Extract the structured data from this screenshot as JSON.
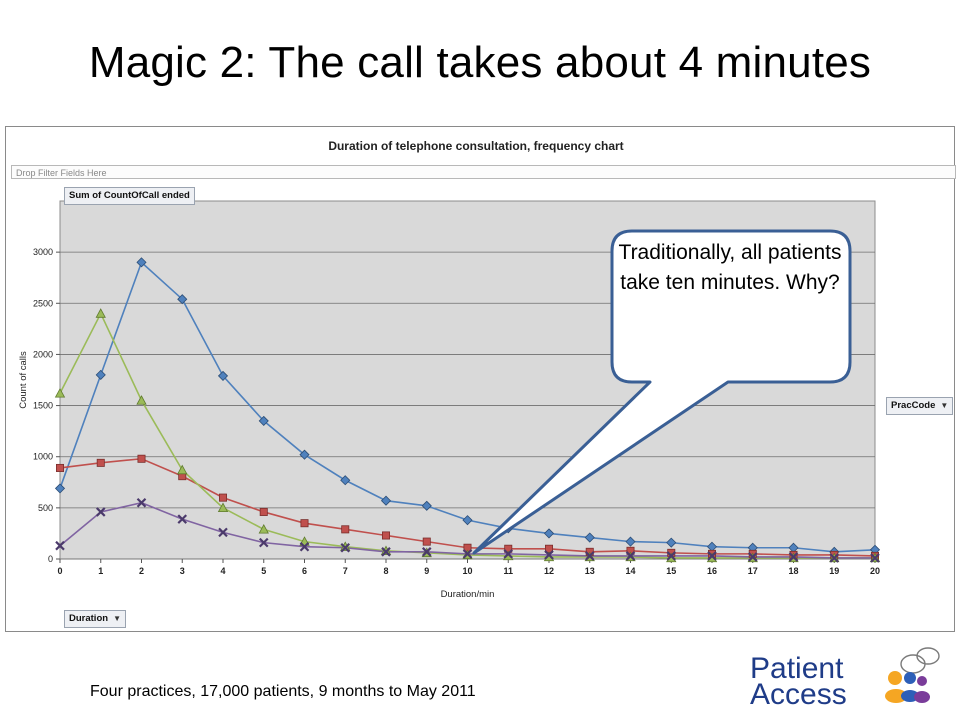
{
  "slide": {
    "title": "Magic 2: The call takes about 4 minutes",
    "footer": "Four practices, 17,000 patients, 9 months to May 2011"
  },
  "pivot": {
    "filter_placeholder": "Drop Filter Fields Here",
    "value_field": "Sum of CountOfCall ended",
    "row_field": "Duration",
    "legend_field": "PracCode"
  },
  "callout": {
    "text": "Traditionally, all patients take ten minutes. Why?"
  },
  "logo": {
    "line1": "Patient",
    "line2": "Access",
    "colors": {
      "word": "#1f3c88",
      "orange": "#f5a623",
      "blue": "#2d5fb8",
      "purple": "#7a3c9a"
    }
  },
  "chart_data": {
    "type": "line",
    "title": "Duration of telephone consultation, frequency chart",
    "xlabel": "Duration/min",
    "ylabel": "Count of calls",
    "x": [
      0,
      1,
      2,
      3,
      4,
      5,
      6,
      7,
      8,
      9,
      10,
      11,
      12,
      13,
      14,
      15,
      16,
      17,
      18,
      19,
      20
    ],
    "ylim": [
      0,
      3500
    ],
    "yticks": [
      0,
      500,
      1000,
      1500,
      2000,
      2500,
      3000
    ],
    "grid": true,
    "series": [
      {
        "color": "#4f81bd",
        "marker": "diamond",
        "values": [
          690,
          1800,
          2900,
          2540,
          1790,
          1350,
          1020,
          770,
          570,
          520,
          380,
          300,
          250,
          210,
          170,
          160,
          120,
          110,
          110,
          70,
          90
        ]
      },
      {
        "color": "#c0504d",
        "marker": "square",
        "values": [
          890,
          940,
          980,
          810,
          600,
          460,
          350,
          290,
          230,
          170,
          110,
          100,
          100,
          70,
          80,
          60,
          50,
          50,
          40,
          40,
          30
        ]
      },
      {
        "color": "#9bbb59",
        "marker": "triangle",
        "values": [
          1620,
          2400,
          1550,
          870,
          500,
          290,
          170,
          120,
          80,
          60,
          40,
          30,
          20,
          20,
          20,
          10,
          10,
          10,
          10,
          10,
          10
        ]
      },
      {
        "color": "#8064a2",
        "marker": "x",
        "values": [
          130,
          460,
          550,
          390,
          260,
          160,
          120,
          110,
          70,
          70,
          50,
          50,
          40,
          30,
          30,
          30,
          30,
          20,
          20,
          10,
          10
        ]
      }
    ]
  }
}
